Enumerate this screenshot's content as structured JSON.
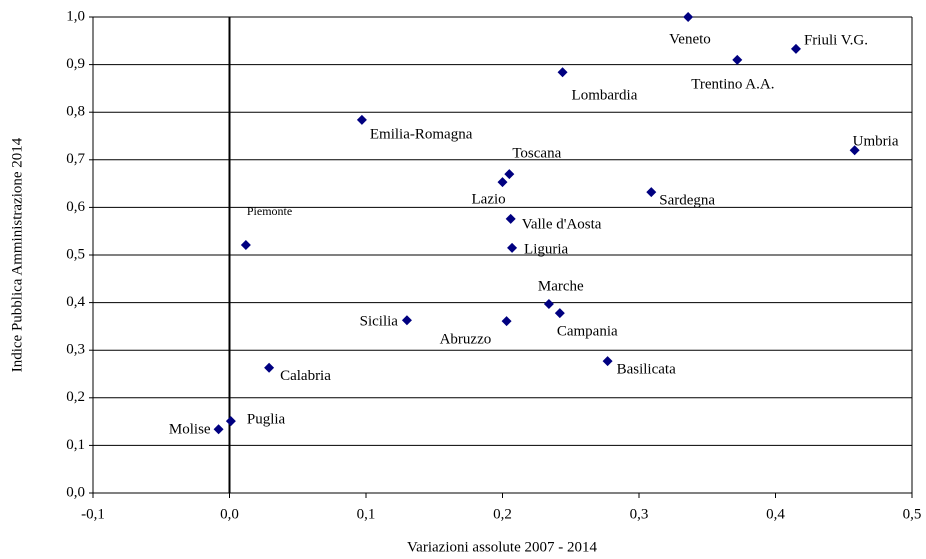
{
  "chart_data": {
    "type": "scatter",
    "x_label": "Variazioni assolute 2007 - 2014",
    "y_label": "Indice Pubblica Amministrazione 2014",
    "color": "#000080",
    "labels": [
      "Veneto",
      "Friuli V.G.",
      "Trentino A.A.",
      "Lombardia",
      "Umbria",
      "Emilia-Romagna",
      "Toscana",
      "Lazio",
      "Sardegna",
      "Valle d'Aosta",
      "Liguria",
      "Piemonte",
      "Marche",
      "Campania",
      "Sicilia",
      "Abruzzo",
      "Basilicata",
      "Calabria",
      "Puglia",
      "Molise"
    ],
    "x": [
      0.336,
      0.415,
      0.372,
      0.244,
      0.458,
      0.097,
      0.205,
      0.2,
      0.309,
      0.206,
      0.207,
      0.012,
      0.234,
      0.242,
      0.13,
      0.203,
      0.277,
      0.029,
      0.001,
      -0.008
    ],
    "values": [
      1.0,
      0.933,
      0.91,
      0.884,
      0.72,
      0.784,
      0.67,
      0.653,
      0.632,
      0.576,
      0.515,
      0.521,
      0.397,
      0.378,
      0.363,
      0.361,
      0.277,
      0.263,
      0.151,
      0.134
    ],
    "xlim": [
      -0.1,
      0.5
    ],
    "ylim": [
      0,
      1.0
    ],
    "xticks": [
      {
        "value": -0.1,
        "label": "-0,1"
      },
      {
        "value": 0,
        "label": "0,0"
      },
      {
        "value": 0.1,
        "label": "0,1"
      },
      {
        "value": 0.2,
        "label": "0,2"
      },
      {
        "value": 0.3,
        "label": "0,3"
      },
      {
        "value": 0.4,
        "label": "0,4"
      },
      {
        "value": 0.5,
        "label": "0,5"
      }
    ],
    "yticks": [
      {
        "value": 0,
        "label": "0,0"
      },
      {
        "value": 0.1,
        "label": "0,1"
      },
      {
        "value": 0.2,
        "label": "0,2"
      },
      {
        "value": 0.3,
        "label": "0,3"
      },
      {
        "value": 0.4,
        "label": "0,4"
      },
      {
        "value": 0.5,
        "label": "0,5"
      },
      {
        "value": 0.6,
        "label": "0,6"
      },
      {
        "value": 0.7,
        "label": "0,7"
      },
      {
        "value": 0.8,
        "label": "0,8"
      },
      {
        "value": 0.9,
        "label": "0,9"
      },
      {
        "value": 1.0,
        "label": "1,0"
      }
    ],
    "grid": true
  }
}
